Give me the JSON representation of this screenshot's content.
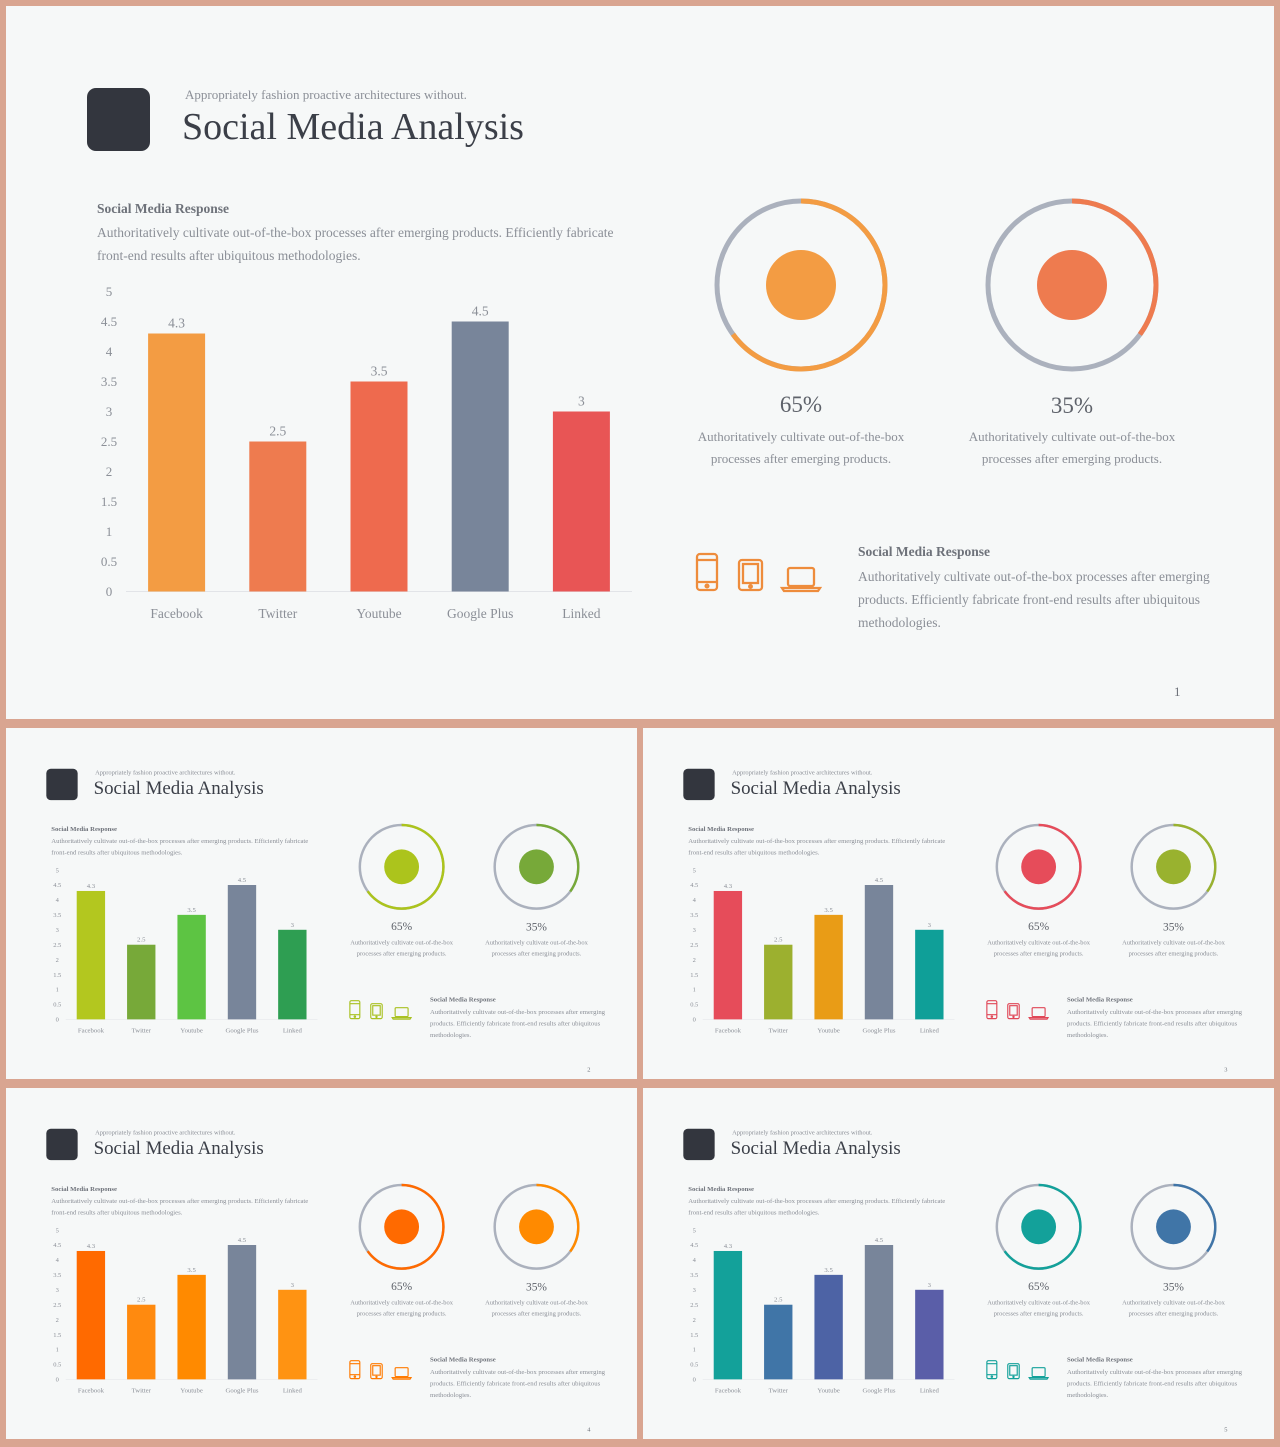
{
  "tagline": "Appropriately fashion proactive architectures without.",
  "title": "Social Media Analysis",
  "response": {
    "heading": "Social Media Response",
    "text": "Authoritatively cultivate out-of-the-box processes after emerging products. Efficiently fabricate front-end results after ubiquitous methodologies."
  },
  "response2": {
    "heading": "Social Media Response",
    "text": "Authoritatively cultivate out-of-the-box processes after emerging products. Efficiently fabricate front-end results after ubiquitous methodologies."
  },
  "stats": [
    {
      "value": "65%",
      "fraction": 0.65,
      "desc": "Authoritatively cultivate out-of-the-box processes after emerging products."
    },
    {
      "value": "35%",
      "fraction": 0.35,
      "desc": "Authoritatively cultivate out-of-the-box processes after emerging products."
    }
  ],
  "device_icons": [
    "phone-icon",
    "tablet-icon",
    "laptop-icon"
  ],
  "chart_data": {
    "type": "bar",
    "title": "",
    "xlabel": "",
    "ylabel": "",
    "categories": [
      "Facebook",
      "Twitter",
      "Youtube",
      "Google Plus",
      "Linked"
    ],
    "values": [
      4.3,
      2.5,
      3.5,
      4.5,
      3
    ],
    "value_labels": [
      "4.3",
      "2.5",
      "3.5",
      "4.5",
      "3"
    ],
    "y_ticks": [
      "0",
      "0.5",
      "1",
      "1.5",
      "2",
      "2.5",
      "3",
      "3.5",
      "4",
      "4.5",
      "5"
    ],
    "ylim": [
      0,
      5
    ],
    "grid": false,
    "legend": "none"
  },
  "variants": [
    {
      "page": "1",
      "bar_colors": [
        "#f39c43",
        "#ee7b4f",
        "#ee6a4e",
        "#78859a",
        "#e85555"
      ],
      "ring_fill": [
        "#f39c43",
        "#ee7b4f"
      ],
      "ring_track": "#abb1bd",
      "ring_arc": [
        "#f39c43",
        "#ee7b4f"
      ],
      "icon_color": "#ee8c3c"
    },
    {
      "page": "2",
      "bar_colors": [
        "#b3c71f",
        "#77a939",
        "#5dc443",
        "#78859a",
        "#2e9e52"
      ],
      "ring_fill": [
        "#acc41c",
        "#77a939"
      ],
      "ring_track": "#abb1bd",
      "ring_arc": [
        "#acc41c",
        "#77a939"
      ],
      "icon_color": "#a9c122"
    },
    {
      "page": "3",
      "bar_colors": [
        "#e64c5a",
        "#9cb02f",
        "#e99c16",
        "#78859a",
        "#0f9f98"
      ],
      "ring_fill": [
        "#e64c5a",
        "#99b22f"
      ],
      "ring_track": "#abb1bd",
      "ring_arc": [
        "#e64c5a",
        "#99b22f"
      ],
      "icon_color": "#e04757"
    },
    {
      "page": "4",
      "bar_colors": [
        "#ff6a00",
        "#ff8a0f",
        "#ff8a00",
        "#78859a",
        "#ff9312"
      ],
      "ring_fill": [
        "#ff6a00",
        "#ff8a00"
      ],
      "ring_track": "#abb1bd",
      "ring_arc": [
        "#ff6a00",
        "#ff8a00"
      ],
      "icon_color": "#ff7a00"
    },
    {
      "page": "5",
      "bar_colors": [
        "#13a19a",
        "#4075a7",
        "#4d63a5",
        "#78859a",
        "#5a5ea8"
      ],
      "ring_fill": [
        "#13a19a",
        "#4075a7"
      ],
      "ring_track": "#abb1bd",
      "ring_arc": [
        "#13a19a",
        "#4075a7"
      ],
      "icon_color": "#13a19a"
    }
  ]
}
